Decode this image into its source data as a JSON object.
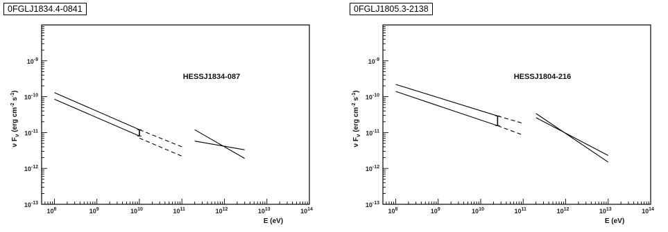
{
  "chart_data": [
    {
      "type": "line",
      "title": "0FGLJ1834.4-0841",
      "annotation": "HESSJ1834-087",
      "xlabel": "E (eV)",
      "ylabel": "ν F_ν (erg cm^-2 s^-1)",
      "x_scale": "log",
      "y_scale": "log",
      "xlim": [
        50000000.0,
        100000000000000.0
      ],
      "ylim": [
        1e-13,
        1e-08
      ],
      "x_ticks": [
        {
          "value": 100000000.0,
          "base": "10",
          "exp": "8"
        },
        {
          "value": 1000000000.0,
          "base": "10",
          "exp": "9"
        },
        {
          "value": 10000000000.0,
          "base": "10",
          "exp": "10"
        },
        {
          "value": 100000000000.0,
          "base": "10",
          "exp": "11"
        },
        {
          "value": 1000000000000.0,
          "base": "10",
          "exp": "12"
        },
        {
          "value": 10000000000000.0,
          "base": "10",
          "exp": "13"
        },
        {
          "value": 100000000000000.0,
          "base": "10",
          "exp": "14"
        }
      ],
      "y_ticks": [
        {
          "value": 1e-13,
          "base": "10",
          "exp": "-13"
        },
        {
          "value": 1e-12,
          "base": "10",
          "exp": "-12"
        },
        {
          "value": 1e-11,
          "base": "10",
          "exp": "-11"
        },
        {
          "value": 1e-10,
          "base": "10",
          "exp": "-10"
        },
        {
          "value": 1e-09,
          "base": "10",
          "exp": "-9"
        }
      ],
      "series": [
        {
          "style": "solid",
          "x": [
            100000000.0,
            10000000000.0
          ],
          "y": [
            1.3e-10,
            1.2e-11
          ]
        },
        {
          "style": "solid",
          "x": [
            100000000.0,
            10000000000.0
          ],
          "y": [
            8.5e-11,
            8e-12
          ]
        },
        {
          "style": "dashed",
          "x": [
            10000000000.0,
            100000000000.0
          ],
          "y": [
            1.2e-11,
            4e-12
          ]
        },
        {
          "style": "dashed",
          "x": [
            10000000000.0,
            100000000000.0
          ],
          "y": [
            7e-12,
            2.2e-12
          ]
        },
        {
          "style": "solid",
          "x": [
            200000000000.0,
            3000000000000.0
          ],
          "y": [
            1.2e-11,
            1.9e-12
          ]
        },
        {
          "style": "solid",
          "x": [
            200000000000.0,
            3000000000000.0
          ],
          "y": [
            5.8e-12,
            3.3e-12
          ]
        }
      ],
      "error_bars": [
        {
          "x": 10000000000.0,
          "y_low": 8e-12,
          "y_high": 1.2e-11
        }
      ]
    },
    {
      "type": "line",
      "title": "0FGLJ1805.3-2138",
      "annotation": "HESSJ1804-216",
      "xlabel": "E (eV)",
      "ylabel": "ν F_ν (erg cm^-2 s^-1)",
      "x_scale": "log",
      "y_scale": "log",
      "xlim": [
        50000000.0,
        100000000000000.0
      ],
      "ylim": [
        1e-13,
        1e-08
      ],
      "x_ticks": [
        {
          "value": 100000000.0,
          "base": "10",
          "exp": "8"
        },
        {
          "value": 1000000000.0,
          "base": "10",
          "exp": "9"
        },
        {
          "value": 10000000000.0,
          "base": "10",
          "exp": "10"
        },
        {
          "value": 100000000000.0,
          "base": "10",
          "exp": "11"
        },
        {
          "value": 1000000000000.0,
          "base": "10",
          "exp": "12"
        },
        {
          "value": 10000000000000.0,
          "base": "10",
          "exp": "13"
        },
        {
          "value": 100000000000000.0,
          "base": "10",
          "exp": "14"
        }
      ],
      "y_ticks": [
        {
          "value": 1e-13,
          "base": "10",
          "exp": "-13"
        },
        {
          "value": 1e-12,
          "base": "10",
          "exp": "-12"
        },
        {
          "value": 1e-11,
          "base": "10",
          "exp": "-11"
        },
        {
          "value": 1e-10,
          "base": "10",
          "exp": "-10"
        },
        {
          "value": 1e-09,
          "base": "10",
          "exp": "-9"
        }
      ],
      "series": [
        {
          "style": "solid",
          "x": [
            100000000.0,
            25000000000.0
          ],
          "y": [
            2.2e-10,
            2.9e-11
          ]
        },
        {
          "style": "solid",
          "x": [
            100000000.0,
            25000000000.0
          ],
          "y": [
            1.4e-10,
            1.55e-11
          ]
        },
        {
          "style": "dashed",
          "x": [
            25000000000.0,
            100000000000.0
          ],
          "y": [
            2.9e-11,
            1.8e-11
          ]
        },
        {
          "style": "dashed",
          "x": [
            25000000000.0,
            100000000000.0
          ],
          "y": [
            1.55e-11,
            8.5e-12
          ]
        },
        {
          "style": "solid",
          "x": [
            200000000000.0,
            10000000000000.0
          ],
          "y": [
            3.4e-11,
            1.5e-12
          ]
        },
        {
          "style": "solid",
          "x": [
            200000000000.0,
            10000000000000.0
          ],
          "y": [
            2.6e-11,
            2.3e-12
          ]
        }
      ],
      "error_bars": [
        {
          "x": 25000000000.0,
          "y_low": 1.55e-11,
          "y_high": 2.9e-11
        }
      ]
    }
  ]
}
